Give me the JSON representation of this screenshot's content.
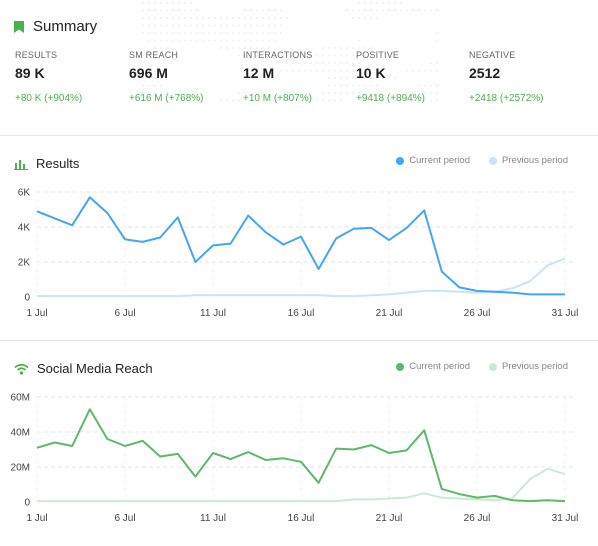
{
  "summary": {
    "title": "Summary",
    "stats": [
      {
        "label": "RESULTS",
        "value": "89 K",
        "change": "+80 K (+904%)"
      },
      {
        "label": "SM REACH",
        "value": "696 M",
        "change": "+616 M (+768%)"
      },
      {
        "label": "INTERACTIONS",
        "value": "12 M",
        "change": "+10 M (+807%)"
      },
      {
        "label": "POSITIVE",
        "value": "10 K",
        "change": "+9418 (+894%)"
      },
      {
        "label": "NEGATIVE",
        "value": "2512",
        "change": "+2418 (+2572%)"
      }
    ],
    "accent": "#4caf50"
  },
  "chart_data": [
    {
      "type": "line",
      "title": "Results",
      "x": [
        "1 Jul",
        "2 Jul",
        "3 Jul",
        "4 Jul",
        "5 Jul",
        "6 Jul",
        "7 Jul",
        "8 Jul",
        "9 Jul",
        "10 Jul",
        "11 Jul",
        "12 Jul",
        "13 Jul",
        "14 Jul",
        "15 Jul",
        "16 Jul",
        "17 Jul",
        "18 Jul",
        "19 Jul",
        "20 Jul",
        "21 Jul",
        "22 Jul",
        "23 Jul",
        "24 Jul",
        "25 Jul",
        "26 Jul",
        "27 Jul",
        "28 Jul",
        "29 Jul",
        "30 Jul",
        "31 Jul"
      ],
      "xticks": [
        "1 Jul",
        "6 Jul",
        "11 Jul",
        "16 Jul",
        "21 Jul",
        "26 Jul",
        "31 Jul"
      ],
      "yticks": [
        "6K",
        "4K",
        "2K",
        "0"
      ],
      "ylim": [
        0,
        6000
      ],
      "series": [
        {
          "name": "Current period",
          "color": "#42a5f5",
          "values": [
            4900,
            4500,
            4100,
            5700,
            4800,
            3300,
            3150,
            3400,
            4550,
            2000,
            2950,
            3050,
            4650,
            3700,
            3000,
            3450,
            1600,
            3350,
            3900,
            3950,
            3250,
            3950,
            4950,
            1450,
            550,
            350,
            300,
            250,
            150,
            150,
            150
          ]
        },
        {
          "name": "Previous period",
          "color": "#c8e4fb",
          "values": [
            50,
            50,
            50,
            50,
            50,
            50,
            50,
            50,
            50,
            100,
            100,
            100,
            100,
            100,
            100,
            100,
            100,
            50,
            50,
            100,
            150,
            250,
            350,
            350,
            300,
            250,
            300,
            500,
            900,
            1800,
            2200
          ]
        }
      ],
      "grid": true,
      "legend": "top-right"
    },
    {
      "type": "line",
      "title": "Social Media Reach",
      "x": [
        "1 Jul",
        "2 Jul",
        "3 Jul",
        "4 Jul",
        "5 Jul",
        "6 Jul",
        "7 Jul",
        "8 Jul",
        "9 Jul",
        "10 Jul",
        "11 Jul",
        "12 Jul",
        "13 Jul",
        "14 Jul",
        "15 Jul",
        "16 Jul",
        "17 Jul",
        "18 Jul",
        "19 Jul",
        "20 Jul",
        "21 Jul",
        "22 Jul",
        "23 Jul",
        "24 Jul",
        "25 Jul",
        "26 Jul",
        "27 Jul",
        "28 Jul",
        "29 Jul",
        "30 Jul",
        "31 Jul"
      ],
      "xticks": [
        "1 Jul",
        "6 Jul",
        "11 Jul",
        "16 Jul",
        "21 Jul",
        "26 Jul",
        "31 Jul"
      ],
      "yticks": [
        "60M",
        "40M",
        "20M",
        "0"
      ],
      "ylim": [
        0,
        60000000
      ],
      "series": [
        {
          "name": "Current period",
          "color": "#5cb86a",
          "values": [
            31000000,
            34000000,
            32000000,
            53000000,
            36000000,
            32000000,
            35000000,
            26000000,
            27500000,
            14500000,
            28000000,
            24500000,
            28500000,
            24000000,
            25000000,
            23000000,
            11000000,
            30500000,
            30000000,
            32500000,
            28000000,
            29500000,
            41000000,
            7500000,
            4500000,
            2500000,
            3500000,
            1000000,
            500000,
            1000000,
            500000
          ]
        },
        {
          "name": "Previous period",
          "color": "#c8ecd3",
          "values": [
            500000,
            500000,
            500000,
            500000,
            500000,
            500000,
            500000,
            500000,
            500000,
            500000,
            500000,
            500000,
            500000,
            500000,
            500000,
            500000,
            500000,
            500000,
            1500000,
            1500000,
            2000000,
            2500000,
            5000000,
            2500000,
            2000000,
            1500000,
            1000000,
            2000000,
            13000000,
            19000000,
            16000000
          ]
        }
      ],
      "grid": true,
      "legend": "top-right"
    }
  ]
}
